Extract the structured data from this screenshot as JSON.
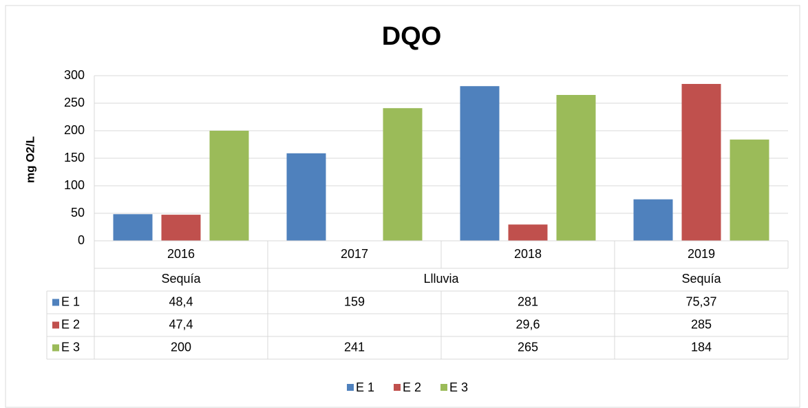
{
  "chart_data": {
    "type": "bar",
    "title": "DQO",
    "y_label": "mg O2/L",
    "categories": [
      "2016",
      "2017",
      "2018",
      "2019"
    ],
    "category_groups": [
      {
        "name": "Sequía",
        "categories": [
          "2016"
        ]
      },
      {
        "name": "Llluvia",
        "categories": [
          "2017",
          "2018"
        ]
      },
      {
        "name": "Sequía",
        "categories": [
          "2019"
        ]
      }
    ],
    "series": [
      {
        "name": "E 1",
        "color": "#4f81bd",
        "values": [
          48.4,
          159,
          281,
          75.37
        ],
        "value_labels": [
          "48,4",
          "159",
          "281",
          "75,37"
        ]
      },
      {
        "name": "E 2",
        "color": "#c0504d",
        "values": [
          47.4,
          null,
          29.6,
          285
        ],
        "value_labels": [
          "47,4",
          null,
          "29,6",
          "285"
        ]
      },
      {
        "name": "E 3",
        "color": "#9bbb59",
        "values": [
          200,
          241,
          265,
          184
        ],
        "value_labels": [
          "200",
          "241",
          "265",
          "184"
        ]
      }
    ],
    "ylim": [
      0,
      300
    ],
    "yticks": [
      0,
      50,
      100,
      150,
      200,
      250,
      300
    ],
    "grid": true,
    "legend": "bottom",
    "data_table": true
  }
}
